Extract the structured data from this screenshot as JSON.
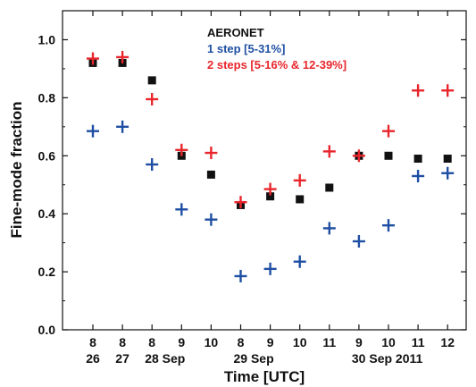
{
  "chart_data": {
    "type": "scatter",
    "x_ticks": [
      {
        "hour": "8",
        "day": "26"
      },
      {
        "hour": "8",
        "day": "27"
      },
      {
        "hour": "8",
        "day": "28 Sep"
      },
      {
        "hour": "9",
        "day": ""
      },
      {
        "hour": "10",
        "day": ""
      },
      {
        "hour": "8",
        "day": "29 Sep"
      },
      {
        "hour": "9",
        "day": ""
      },
      {
        "hour": "10",
        "day": ""
      },
      {
        "hour": "11",
        "day": ""
      },
      {
        "hour": "9",
        "day": "30 Sep 2011"
      },
      {
        "hour": "10",
        "day": ""
      },
      {
        "hour": "11",
        "day": ""
      },
      {
        "hour": "12",
        "day": ""
      }
    ],
    "xlabel": "Time [UTC]",
    "ylabel": "Fine-mode fraction",
    "ylim": [
      0.0,
      1.1
    ],
    "y_ticks": [
      "0.0",
      "0.2",
      "0.4",
      "0.6",
      "0.8",
      "1.0"
    ],
    "series": [
      {
        "name": "AERONET",
        "color": "#111111",
        "marker": "square",
        "values": [
          0.92,
          0.92,
          0.86,
          0.6,
          0.535,
          0.43,
          0.46,
          0.45,
          0.49,
          0.6,
          0.6,
          0.59,
          0.59
        ]
      },
      {
        "name": "1 step [5-31%]",
        "color": "#1f4fa3",
        "marker": "plus",
        "values": [
          0.685,
          0.7,
          0.57,
          0.415,
          0.38,
          0.185,
          0.21,
          0.235,
          0.35,
          0.305,
          0.36,
          0.53,
          0.54
        ]
      },
      {
        "name": "2 steps [5-16% & 12-39%]",
        "color": "#e8262c",
        "marker": "plus",
        "values": [
          0.935,
          0.94,
          0.795,
          0.62,
          0.61,
          0.44,
          0.485,
          0.515,
          0.615,
          0.6,
          0.685,
          0.825,
          0.825
        ]
      }
    ],
    "legend_position": "top-right"
  }
}
